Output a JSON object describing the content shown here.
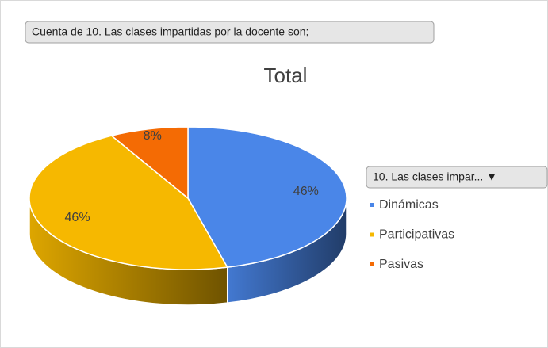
{
  "field_button": "Cuenta de 10. Las clases impartidas por la docente son;",
  "legend_button": "10. Las clases impar... ▼",
  "chart_data": {
    "type": "pie",
    "title": "Total",
    "categories": [
      "Dinámicas",
      "Participativas",
      "Pasivas"
    ],
    "values": [
      46,
      46,
      8
    ],
    "value_labels": [
      "46%",
      "46%",
      "8%"
    ],
    "colors": [
      "#4a86e8",
      "#f6b800",
      "#f46b04"
    ],
    "legend": "right"
  }
}
